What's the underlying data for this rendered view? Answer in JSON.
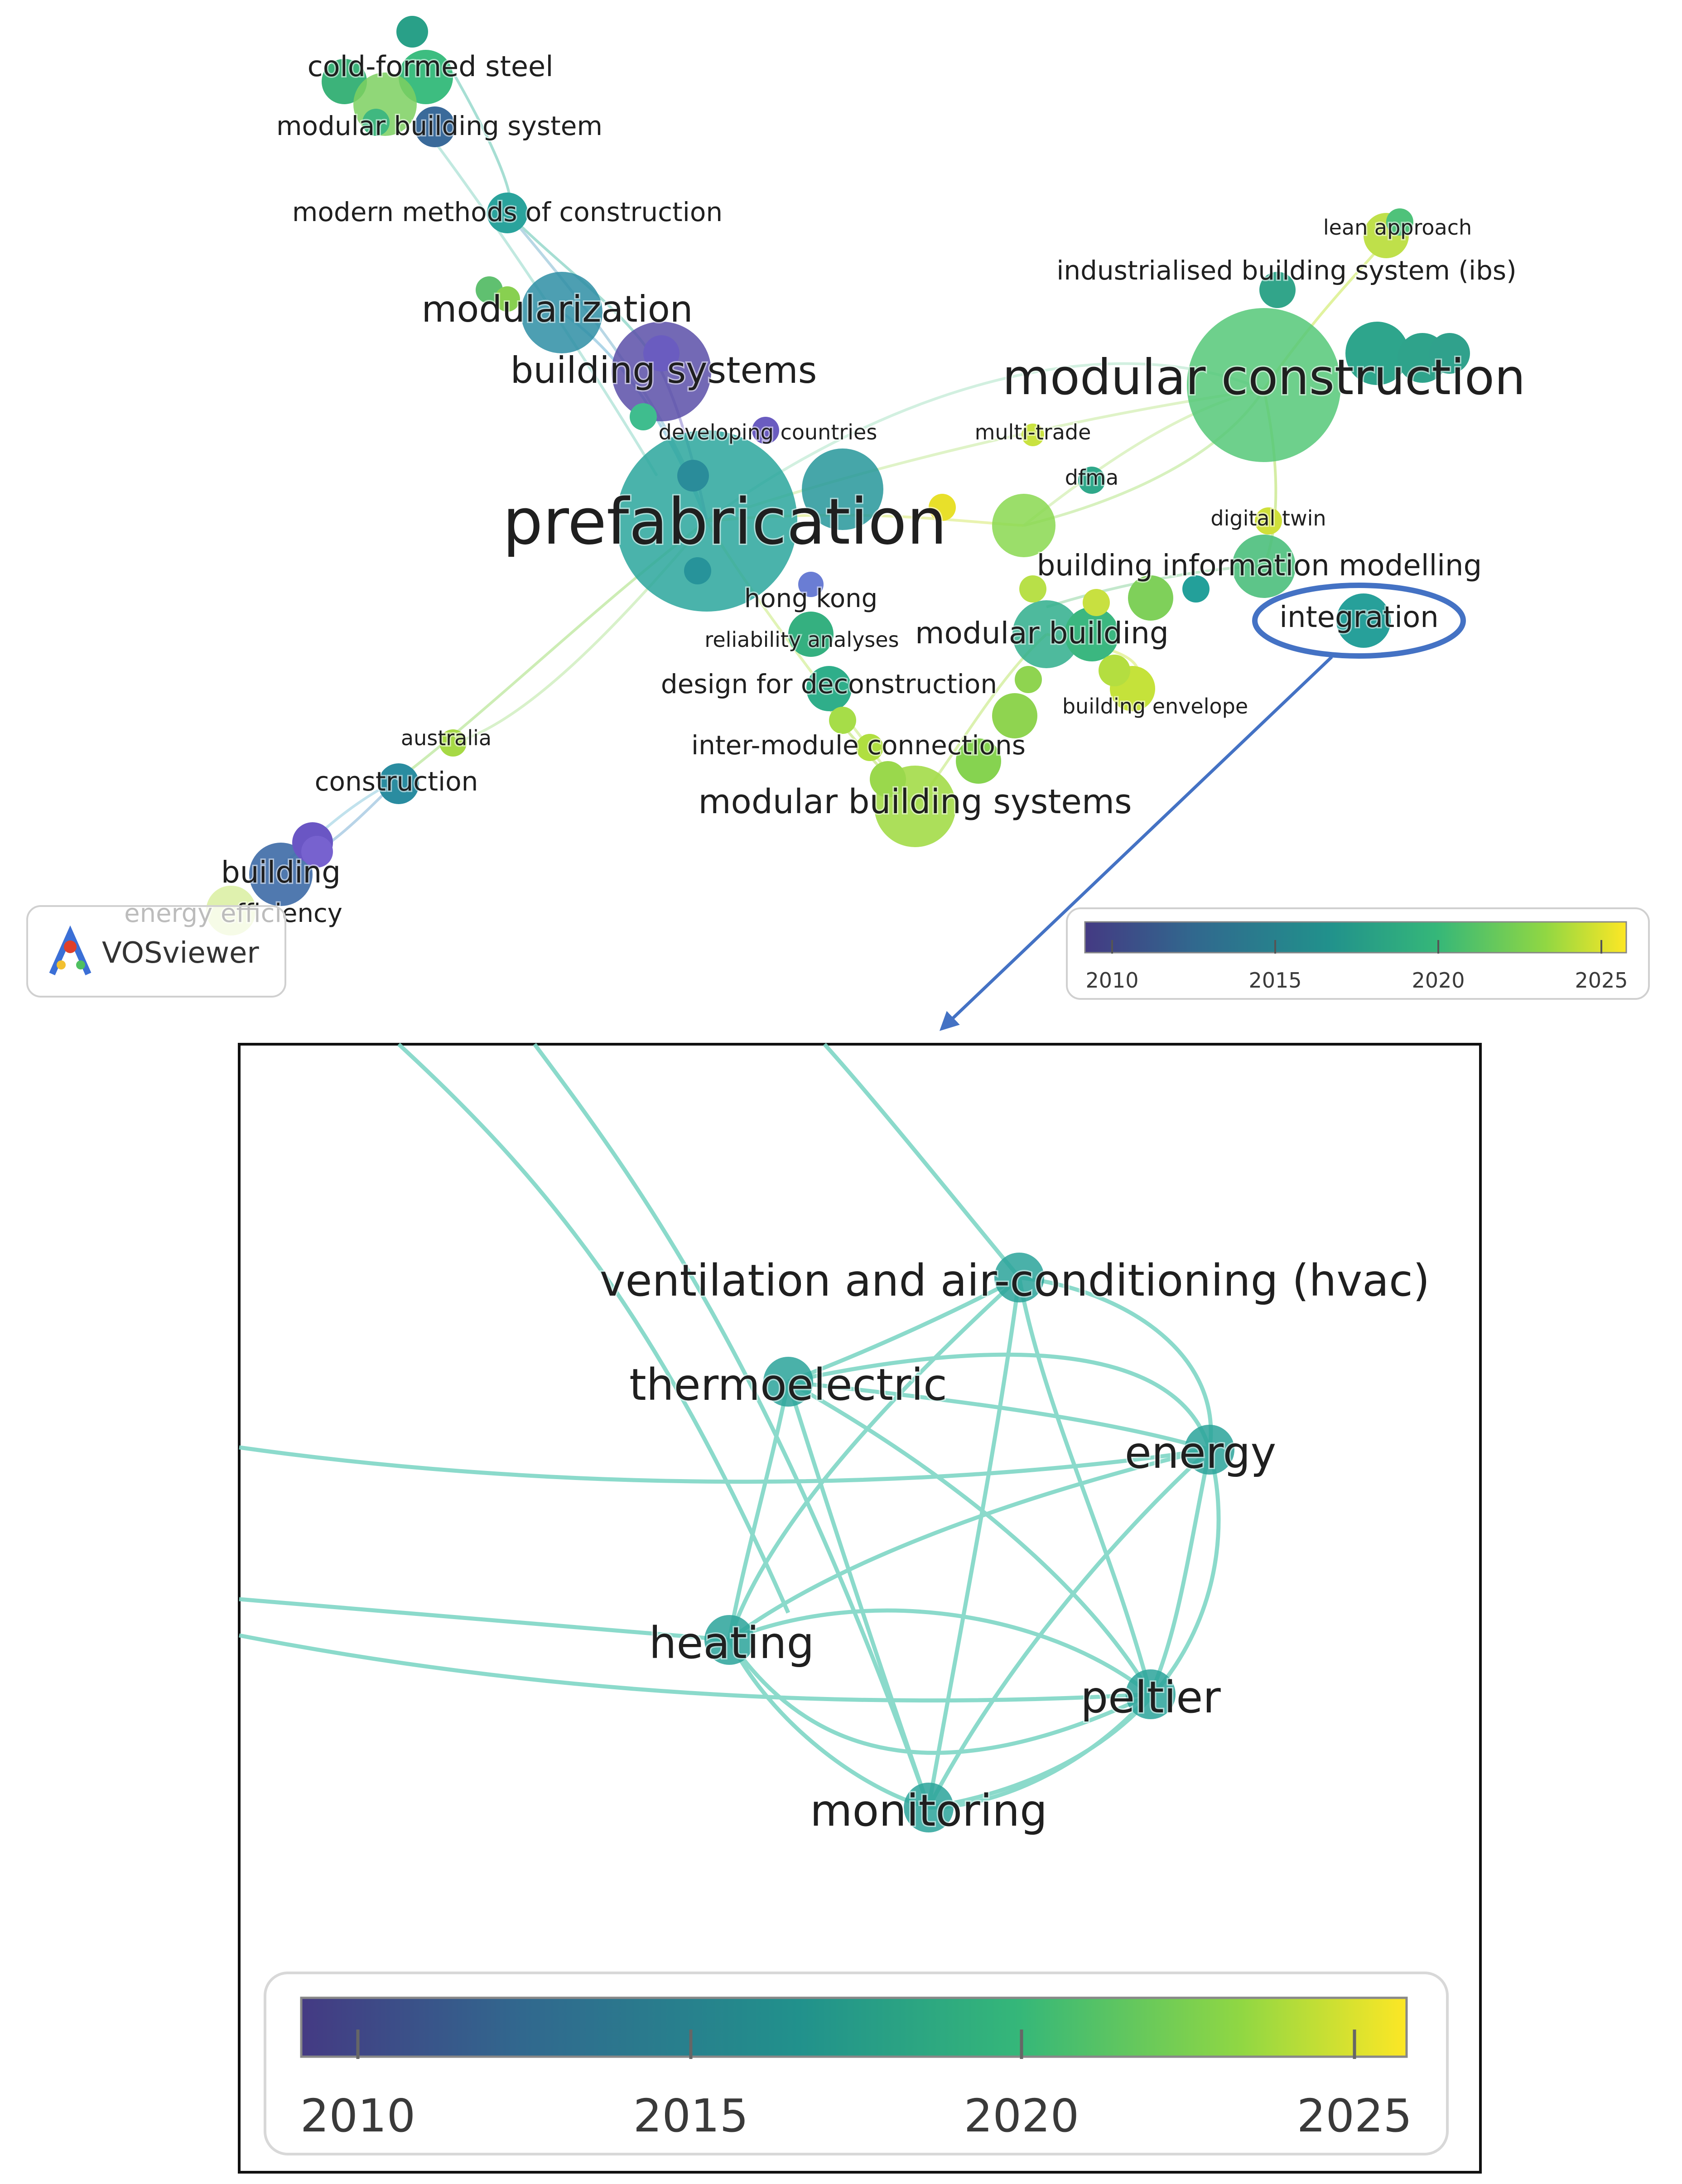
{
  "overview": {
    "labels": {
      "prefabrication": "prefabrication",
      "modular_construction": "modular construction",
      "building_systems": "building systems",
      "modularization": "modularization",
      "cold_formed_steel": "cold-formed steel",
      "modular_building_system": "modular building system",
      "modern_methods": "modern methods of construction",
      "developing_countries": "developing countries",
      "multi_trade": "multi-trade",
      "dfma": "dfma",
      "digital_twin": "digital twin",
      "lean_approach": "lean approach",
      "ibs": "industrialised building system (ibs)",
      "bim": "building information modelling",
      "integration": "integration",
      "hong_kong": "hong kong",
      "reliability_analyses": "reliability analyses",
      "modular_building": "modular building",
      "design_for_deconstruction": "design for deconstruction",
      "building_envelope": "building envelope",
      "inter_module_connections": "inter-module connections",
      "modular_building_systems": "modular building systems",
      "australia": "australia",
      "construction": "construction",
      "building": "building",
      "energy_efficiency": "energy efficiency"
    },
    "brand": "VOSviewer",
    "legend": {
      "ticks": [
        "2010",
        "2015",
        "2020",
        "2025"
      ]
    }
  },
  "zoom": {
    "labels": {
      "hvac": "ventilation and air-conditioning (hvac)",
      "thermoelectric": "thermoelectric",
      "energy": "energy",
      "heating": "heating",
      "peltier": "peltier",
      "monitoring": "monitoring"
    },
    "legend": {
      "ticks": [
        "2010",
        "2015",
        "2020",
        "2025"
      ]
    }
  },
  "colors": {
    "scale": [
      "#443a83",
      "#31688e",
      "#21918c",
      "#35b779",
      "#90d743",
      "#fde725"
    ],
    "highlight": "#4472c4",
    "zoom_link": "#7fd6c6"
  }
}
